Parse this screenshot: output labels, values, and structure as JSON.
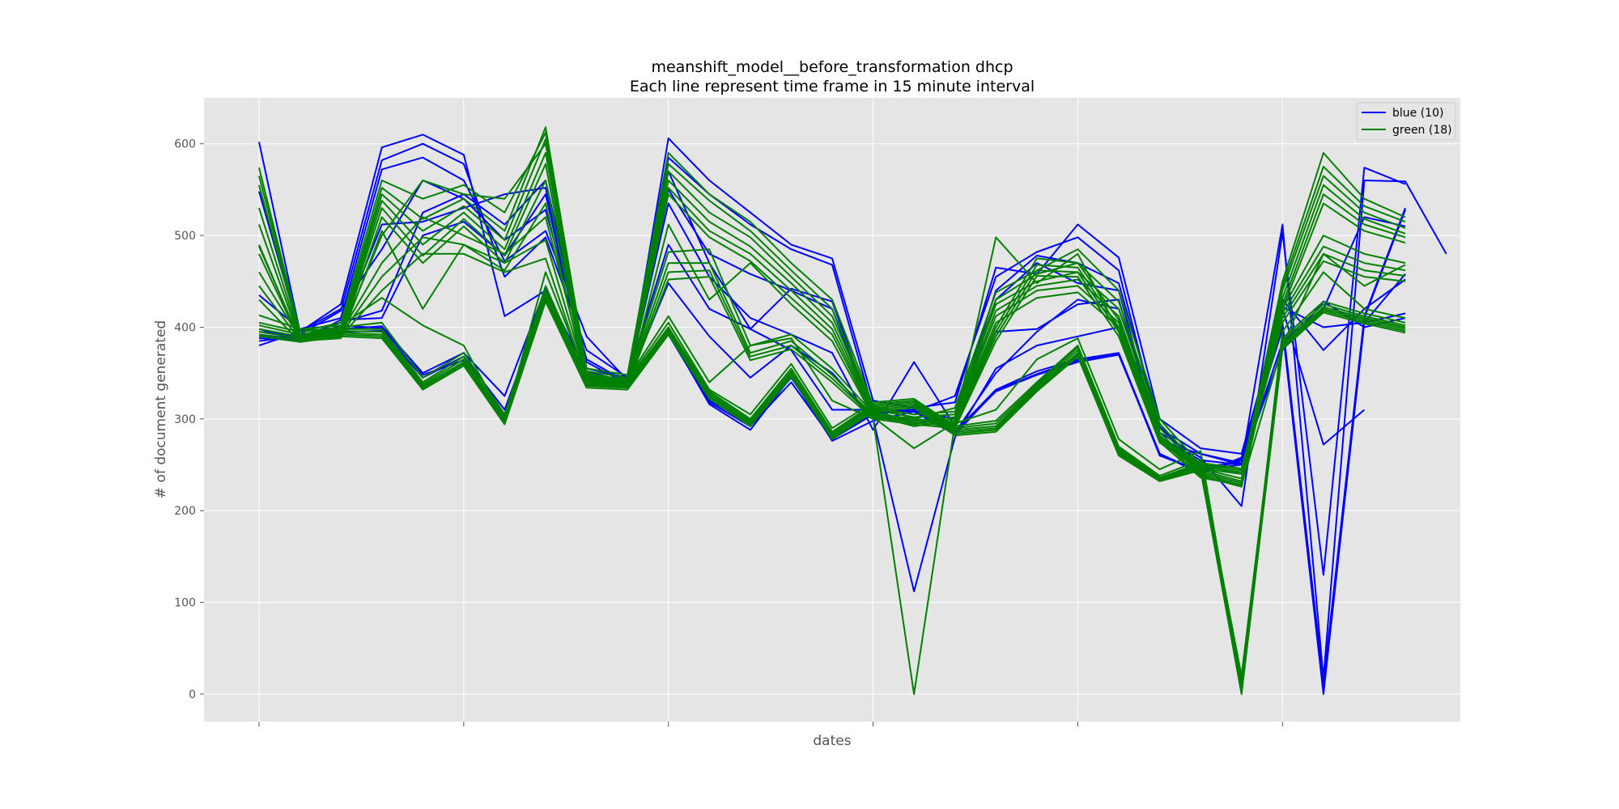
{
  "chart_data": {
    "type": "line",
    "title": "meanshift_model__before_transformation dhcp",
    "subtitle": "Each line represent time frame in 15 minute interval",
    "xlabel": "dates",
    "ylabel": "# of document generated",
    "xticks": [
      "",
      "",
      "",
      "",
      "",
      ""
    ],
    "yticks": [
      0,
      100,
      200,
      300,
      400,
      500,
      600
    ],
    "ylim": [
      -30,
      650
    ],
    "grid": true,
    "legend_position": "top-right",
    "colors": {
      "blue": "#0000ff",
      "green": "#008000",
      "plot_bg": "#e5e5e5",
      "grid": "#ffffff"
    },
    "legend": [
      {
        "label": "blue (10)",
        "color": "#0000ff"
      },
      {
        "label": "green (18)",
        "color": "#008000"
      }
    ],
    "series": [
      {
        "color": "#0000ff",
        "values": [
          602,
          395,
          425,
          596,
          610,
          588,
          412,
          440,
          352,
          340,
          606,
          560,
          525,
          490,
          475,
          320,
          312,
          318,
          465,
          458,
          512,
          476,
          300,
          268,
          262,
          420,
          272,
          310
        ]
      },
      {
        "color": "#0000ff",
        "values": [
          548,
          392,
          418,
          582,
          600,
          578,
          455,
          498,
          375,
          345,
          585,
          545,
          512,
          485,
          468,
          310,
          308,
          325,
          455,
          482,
          498,
          462,
          285,
          258,
          205,
          503,
          130,
          574,
          556
        ]
      },
      {
        "color": "#0000ff",
        "values": [
          435,
          398,
          410,
          572,
          585,
          560,
          472,
          505,
          390,
          342,
          570,
          470,
          398,
          442,
          428,
          305,
          310,
          300,
          440,
          478,
          470,
          448,
          292,
          248,
          252,
          512,
          17,
          560,
          559,
          480
        ]
      },
      {
        "color": "#0000ff",
        "values": [
          395,
          390,
          405,
          418,
          525,
          545,
          512,
          560,
          362,
          338,
          550,
          480,
          458,
          440,
          420,
          302,
          298,
          295,
          430,
          470,
          448,
          440,
          275,
          245,
          250,
          384,
          420,
          520,
          510
        ]
      },
      {
        "color": "#0000ff",
        "values": [
          390,
          388,
          398,
          401,
          350,
          372,
          325,
          442,
          340,
          338,
          395,
          320,
          295,
          345,
          280,
          306,
          312,
          286,
          332,
          352,
          365,
          372,
          262,
          240,
          258,
          405,
          12,
          412,
          530
        ]
      },
      {
        "color": "#0000ff",
        "values": [
          388,
          386,
          395,
          396,
          345,
          368,
          310,
          432,
          338,
          337,
          392,
          318,
          292,
          340,
          278,
          305,
          310,
          285,
          330,
          348,
          362,
          370,
          262,
          242,
          255,
          402,
          8,
          410,
          528
        ]
      },
      {
        "color": "#0000ff",
        "values": [
          385,
          390,
          400,
          512,
          515,
          530,
          545,
          552,
          355,
          345,
          490,
          420,
          398,
          375,
          310,
          310,
          308,
          285,
          350,
          395,
          430,
          420,
          290,
          262,
          252,
          375,
          428,
          400,
          410
        ]
      },
      {
        "color": "#0000ff",
        "values": [
          380,
          395,
          420,
          485,
          560,
          540,
          495,
          528,
          365,
          340,
          448,
          390,
          345,
          380,
          350,
          300,
          112,
          280,
          355,
          380,
          390,
          400,
          280,
          255,
          250,
          422,
          400,
          405,
          415
        ]
      },
      {
        "color": "#0000ff",
        "values": [
          398,
          385,
          408,
          410,
          500,
          515,
          478,
          545,
          348,
          339,
          535,
          455,
          410,
          392,
          372,
          288,
          362,
          292,
          395,
          398,
          425,
          430,
          275,
          262,
          250,
          430,
          375,
          420,
          452
        ]
      },
      {
        "color": "#0000ff",
        "values": [
          392,
          387,
          402,
          399,
          348,
          364,
          305,
          436,
          336,
          336,
          394,
          316,
          288,
          346,
          276,
          298,
          308,
          283,
          331,
          349,
          364,
          371,
          260,
          243,
          256,
          398,
          0,
          405,
          458
        ]
      },
      {
        "color": "#008000",
        "values": [
          574,
          395,
          405,
          560,
          540,
          555,
          525,
          612,
          355,
          348,
          590,
          545,
          515,
          470,
          430,
          315,
          300,
          312,
          438,
          462,
          485,
          440,
          300,
          250,
          240,
          450,
          590,
          540,
          520
        ]
      },
      {
        "color": "#008000",
        "values": [
          565,
          392,
          400,
          552,
          518,
          540,
          505,
          618,
          352,
          345,
          578,
          538,
          505,
          462,
          420,
          312,
          305,
          308,
          430,
          458,
          470,
          428,
          295,
          246,
          235,
          445,
          575,
          532,
          515
        ]
      },
      {
        "color": "#008000",
        "values": [
          555,
          390,
          398,
          545,
          505,
          532,
          495,
          605,
          348,
          342,
          570,
          525,
          498,
          455,
          412,
          310,
          302,
          305,
          425,
          450,
          460,
          420,
          290,
          244,
          232,
          440,
          565,
          525,
          508
        ]
      },
      {
        "color": "#008000",
        "values": [
          530,
          388,
          395,
          538,
          490,
          525,
          485,
          590,
          345,
          340,
          560,
          515,
          488,
          448,
          405,
          308,
          298,
          302,
          418,
          445,
          452,
          412,
          285,
          242,
          230,
          432,
          555,
          518,
          502
        ]
      },
      {
        "color": "#008000",
        "values": [
          512,
          386,
          393,
          530,
          478,
          518,
          478,
          578,
          342,
          338,
          552,
          505,
          480,
          440,
          398,
          306,
          295,
          300,
          412,
          440,
          445,
          405,
          282,
          240,
          228,
          425,
          545,
          512,
          498
        ]
      },
      {
        "color": "#008000",
        "values": [
          490,
          384,
          390,
          520,
          470,
          510,
          470,
          560,
          340,
          336,
          545,
          498,
          472,
          432,
          392,
          304,
          292,
          298,
          405,
          432,
          438,
          400,
          278,
          238,
          226,
          420,
          535,
          505,
          492
        ]
      },
      {
        "color": "#008000",
        "values": [
          480,
          385,
          388,
          505,
          420,
          490,
          462,
          535,
          338,
          335,
          512,
          430,
          470,
          425,
          385,
          302,
          268,
          296,
          498,
          448,
          480,
          395,
          275,
          236,
          228,
          380,
          480,
          445,
          468
        ]
      },
      {
        "color": "#008000",
        "values": [
          413,
          398,
          402,
          432,
          402,
          380,
          298,
          460,
          346,
          344,
          412,
          340,
          380,
          388,
          320,
          300,
          0,
          295,
          310,
          365,
          388,
          278,
          245,
          265,
          8,
          395,
          460,
          420,
          410
        ]
      },
      {
        "color": "#008000",
        "values": [
          405,
          395,
          400,
          405,
          345,
          372,
          305,
          445,
          344,
          342,
          405,
          332,
          305,
          360,
          290,
          318,
          322,
          292,
          298,
          340,
          380,
          270,
          238,
          255,
          15,
          388,
          428,
          415,
          405
        ]
      },
      {
        "color": "#008000",
        "values": [
          402,
          392,
          398,
          398,
          340,
          368,
          302,
          440,
          342,
          340,
          400,
          330,
          300,
          355,
          286,
          316,
          320,
          290,
          295,
          338,
          378,
          268,
          236,
          252,
          20,
          385,
          425,
          412,
          402
        ]
      },
      {
        "color": "#008000",
        "values": [
          398,
          390,
          396,
          395,
          338,
          365,
          300,
          436,
          340,
          338,
          398,
          328,
          298,
          352,
          284,
          314,
          318,
          288,
          292,
          336,
          375,
          266,
          235,
          250,
          12,
          382,
          422,
          410,
          400
        ]
      },
      {
        "color": "#008000",
        "values": [
          395,
          388,
          394,
          392,
          336,
          362,
          298,
          432,
          338,
          336,
          396,
          326,
          296,
          350,
          282,
          312,
          316,
          286,
          290,
          334,
          372,
          264,
          234,
          248,
          5,
          380,
          420,
          408,
          398
        ]
      },
      {
        "color": "#008000",
        "values": [
          392,
          386,
          392,
          390,
          334,
          360,
          296,
          430,
          336,
          334,
          394,
          324,
          294,
          348,
          280,
          310,
          314,
          284,
          288,
          332,
          370,
          262,
          233,
          246,
          0,
          378,
          418,
          406,
          396
        ]
      },
      {
        "color": "#008000",
        "values": [
          390,
          384,
          390,
          388,
          332,
          358,
          294,
          428,
          334,
          332,
          392,
          322,
          292,
          346,
          278,
          308,
          312,
          282,
          286,
          330,
          368,
          260,
          232,
          244,
          2,
          376,
          416,
          404,
          394
        ]
      },
      {
        "color": "#008000",
        "values": [
          488,
          386,
          392,
          500,
          560,
          545,
          540,
          600,
          350,
          342,
          482,
          485,
          380,
          392,
          355,
          306,
          300,
          296,
          400,
          475,
          470,
          408,
          280,
          252,
          246,
          420,
          500,
          480,
          470
        ]
      },
      {
        "color": "#008000",
        "values": [
          460,
          388,
          394,
          470,
          520,
          500,
          480,
          520,
          346,
          340,
          470,
          470,
          372,
          385,
          348,
          304,
          298,
          294,
          395,
          468,
          465,
          400,
          278,
          250,
          244,
          415,
          488,
          470,
          462
        ]
      },
      {
        "color": "#008000",
        "values": [
          445,
          386,
          392,
          455,
          498,
          490,
          470,
          495,
          344,
          338,
          460,
          462,
          368,
          380,
          344,
          302,
          296,
          292,
          390,
          462,
          460,
          395,
          276,
          248,
          242,
          410,
          480,
          462,
          456
        ]
      },
      {
        "color": "#008000",
        "values": [
          430,
          384,
          390,
          440,
          480,
          480,
          460,
          475,
          342,
          336,
          452,
          455,
          364,
          376,
          340,
          300,
          294,
          290,
          385,
          456,
          455,
          390,
          274,
          246,
          240,
          405,
          472,
          455,
          450
        ]
      }
    ]
  }
}
